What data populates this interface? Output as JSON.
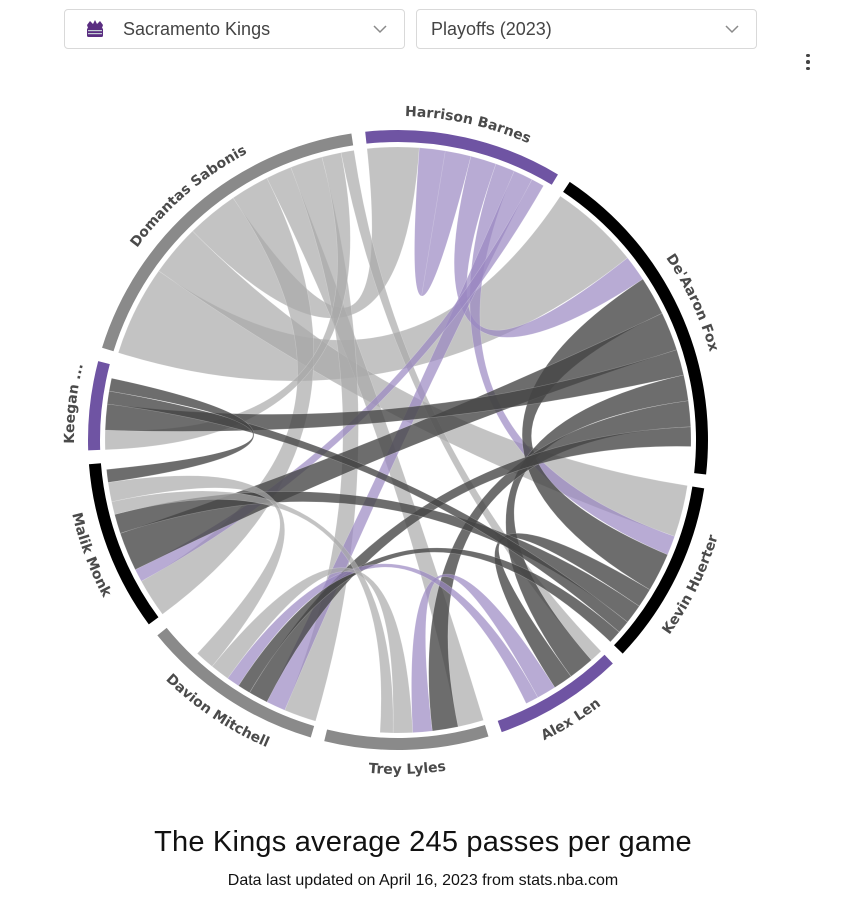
{
  "controls": {
    "team": "Sacramento Kings",
    "season": "Playoffs (2023)"
  },
  "colors": {
    "purple": "#6f54a3",
    "gray": "#8a8a8a",
    "black": "#000000"
  },
  "chart_data": {
    "type": "chord",
    "title": "The Kings average 245 passes per game",
    "subtitle": "Data last updated on April 16, 2023 from stats.nba.com",
    "players": [
      {
        "name": "Harrison Barnes",
        "label": "Harrison Barnes",
        "passes": 29,
        "color": "purple"
      },
      {
        "name": "De'Aaron Fox",
        "label": "De'Aaron Fox",
        "passes": 49,
        "color": "black"
      },
      {
        "name": "Kevin Huerter",
        "label": "Kevin Huerter",
        "passes": 27,
        "color": "black"
      },
      {
        "name": "Alex Len",
        "label": "Alex Len",
        "passes": 19,
        "color": "purple"
      },
      {
        "name": "Trey Lyles",
        "label": "Trey Lyles",
        "passes": 24,
        "color": "gray"
      },
      {
        "name": "Davion Mitchell",
        "label": "Davion Mitchell",
        "passes": 27,
        "color": "gray"
      },
      {
        "name": "Malik Monk",
        "label": "Malik Monk",
        "passes": 25,
        "color": "black"
      },
      {
        "name": "Keegan Murray",
        "label": "Keegan ...",
        "passes": 13,
        "color": "purple"
      },
      {
        "name": "Domantas Sabonis",
        "label": "Domantas Sabonis",
        "passes": 50,
        "color": "gray"
      }
    ],
    "links": [
      {
        "from": "Domantas Sabonis",
        "to": "De'Aaron Fox",
        "value": 14
      },
      {
        "from": "Domantas Sabonis",
        "to": "Kevin Huerter",
        "value": 8
      },
      {
        "from": "Domantas Sabonis",
        "to": "Harrison Barnes",
        "value": 8
      },
      {
        "from": "Domantas Sabonis",
        "to": "Malik Monk",
        "value": 6
      },
      {
        "from": "Domantas Sabonis",
        "to": "Trey Lyles",
        "value": 4
      },
      {
        "from": "Domantas Sabonis",
        "to": "Davion Mitchell",
        "value": 5
      },
      {
        "from": "Domantas Sabonis",
        "to": "Keegan Murray",
        "value": 3
      },
      {
        "from": "Domantas Sabonis",
        "to": "Alex Len",
        "value": 2
      },
      {
        "from": "Harrison Barnes",
        "to": "Harrison Barnes",
        "value": 4
      },
      {
        "from": "Harrison Barnes",
        "to": "De'Aaron Fox",
        "value": 4
      },
      {
        "from": "Harrison Barnes",
        "to": "Kevin Huerter",
        "value": 3
      },
      {
        "from": "Harrison Barnes",
        "to": "Davion Mitchell",
        "value": 3
      },
      {
        "from": "Harrison Barnes",
        "to": "Malik Monk",
        "value": 2
      },
      {
        "from": "De'Aaron Fox",
        "to": "Kevin Huerter",
        "value": 6
      },
      {
        "from": "De'Aaron Fox",
        "to": "Malik Monk",
        "value": 6
      },
      {
        "from": "De'Aaron Fox",
        "to": "Keegan Murray",
        "value": 4
      },
      {
        "from": "De'Aaron Fox",
        "to": "Alex Len",
        "value": 4
      },
      {
        "from": "De'Aaron Fox",
        "to": "Trey Lyles",
        "value": 4
      },
      {
        "from": "De'Aaron Fox",
        "to": "Davion Mitchell",
        "value": 3
      },
      {
        "from": "Kevin Huerter",
        "to": "Alex Len",
        "value": 3
      },
      {
        "from": "Kevin Huerter",
        "to": "Malik Monk",
        "value": 3
      },
      {
        "from": "Kevin Huerter",
        "to": "Keegan Murray",
        "value": 2
      },
      {
        "from": "Kevin Huerter",
        "to": "Davion Mitchell",
        "value": 2
      },
      {
        "from": "Alex Len",
        "to": "Trey Lyles",
        "value": 3
      },
      {
        "from": "Alex Len",
        "to": "Davion Mitchell",
        "value": 2
      },
      {
        "from": "Trey Lyles",
        "to": "Davion Mitchell",
        "value": 3
      },
      {
        "from": "Trey Lyles",
        "to": "Malik Monk",
        "value": 2
      },
      {
        "from": "Davion Mitchell",
        "to": "Malik Monk",
        "value": 3
      },
      {
        "from": "Malik Monk",
        "to": "Keegan Murray",
        "value": 2
      }
    ]
  }
}
